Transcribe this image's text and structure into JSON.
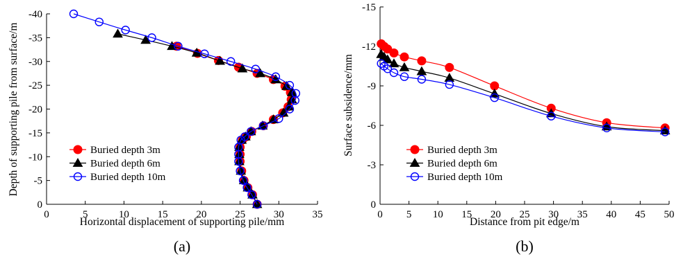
{
  "chart_data": [
    {
      "type": "line",
      "panel_label": "(a)",
      "xlabel": "Horizontal displacement of supporting pile/mm",
      "ylabel": "Depth of supporting pile from surface/m",
      "xlim": [
        0,
        35
      ],
      "ylim": [
        0,
        -40
      ],
      "xticks": [
        "0",
        "5",
        "10",
        "15",
        "20",
        "25",
        "30",
        "35"
      ],
      "yticks": [
        "0",
        "-5",
        "-10",
        "-15",
        "-20",
        "-25",
        "-30",
        "-35",
        "-40"
      ],
      "legend_position": "bottom-left",
      "series": [
        {
          "name": "Buried depth 3m",
          "color": "#ff0000",
          "marker": "filled-circle",
          "points": [
            [
              27.2,
              0
            ],
            [
              26.6,
              -2
            ],
            [
              26.0,
              -3.5
            ],
            [
              25.5,
              -5
            ],
            [
              25.2,
              -7
            ],
            [
              25.0,
              -9
            ],
            [
              25.0,
              -10.5
            ],
            [
              25.0,
              -12
            ],
            [
              25.3,
              -13.5
            ],
            [
              25.8,
              -14.2
            ],
            [
              26.5,
              -15.3
            ],
            [
              28.0,
              -16.5
            ],
            [
              29.3,
              -17.8
            ],
            [
              30.5,
              -19.2
            ],
            [
              31.2,
              -20.5
            ],
            [
              31.6,
              -22
            ],
            [
              31.5,
              -23.5
            ],
            [
              30.8,
              -24.8
            ],
            [
              29.3,
              -26.2
            ],
            [
              27.2,
              -27.5
            ],
            [
              24.8,
              -28.8
            ],
            [
              22.2,
              -30.2
            ],
            [
              19.5,
              -31.7
            ],
            [
              16.8,
              -33.2
            ]
          ]
        },
        {
          "name": "Buried depth 6m",
          "color": "#000000",
          "marker": "filled-triangle",
          "points": [
            [
              27.2,
              0
            ],
            [
              26.6,
              -2
            ],
            [
              26.0,
              -3.5
            ],
            [
              25.5,
              -5
            ],
            [
              25.1,
              -7
            ],
            [
              24.9,
              -9
            ],
            [
              24.9,
              -10.5
            ],
            [
              24.9,
              -12
            ],
            [
              25.2,
              -13.5
            ],
            [
              25.7,
              -14.2
            ],
            [
              26.4,
              -15.3
            ],
            [
              27.9,
              -16.5
            ],
            [
              29.3,
              -17.8
            ],
            [
              30.6,
              -19.2
            ],
            [
              31.3,
              -20.5
            ],
            [
              31.7,
              -22
            ],
            [
              31.7,
              -23.5
            ],
            [
              31.0,
              -24.8
            ],
            [
              29.6,
              -26.2
            ],
            [
              27.6,
              -27.5
            ],
            [
              25.3,
              -28.5
            ],
            [
              22.4,
              -30.1
            ],
            [
              19.4,
              -31.8
            ],
            [
              16.2,
              -33.2
            ],
            [
              12.8,
              -34.5
            ],
            [
              9.2,
              -35.8
            ]
          ]
        },
        {
          "name": "Buried depth 10m",
          "color": "#0000ff",
          "marker": "open-circle",
          "points": [
            [
              27.2,
              0
            ],
            [
              26.5,
              -2
            ],
            [
              25.9,
              -3.5
            ],
            [
              25.4,
              -5
            ],
            [
              25.0,
              -7
            ],
            [
              24.8,
              -9
            ],
            [
              24.8,
              -10.5
            ],
            [
              24.8,
              -12
            ],
            [
              25.1,
              -13.5
            ],
            [
              25.6,
              -14.2
            ],
            [
              26.4,
              -15.3
            ],
            [
              28.0,
              -16.5
            ],
            [
              30.0,
              -18.0
            ],
            [
              31.4,
              -20
            ],
            [
              32.1,
              -21.8
            ],
            [
              32.2,
              -23.3
            ],
            [
              31.4,
              -25
            ],
            [
              29.6,
              -26.8
            ],
            [
              27.0,
              -28.4
            ],
            [
              23.8,
              -30
            ],
            [
              20.4,
              -31.6
            ],
            [
              17.0,
              -33.2
            ],
            [
              13.6,
              -35.0
            ],
            [
              10.2,
              -36.6
            ],
            [
              6.8,
              -38.3
            ],
            [
              3.5,
              -40
            ]
          ]
        }
      ]
    },
    {
      "type": "line",
      "panel_label": "(b)",
      "xlabel": "Distance from pit edge/m",
      "ylabel": "Surface subsidence/mm",
      "xlim": [
        0,
        50
      ],
      "ylim": [
        0,
        -15
      ],
      "xticks": [
        "0",
        "5",
        "10",
        "15",
        "20",
        "25",
        "30",
        "35",
        "40",
        "45",
        "50"
      ],
      "yticks": [
        "0",
        "-3",
        "-6",
        "-9",
        "-12",
        "-15"
      ],
      "legend_position": "bottom-left",
      "series": [
        {
          "name": "Buried depth 3m",
          "color": "#ff0000",
          "marker": "filled-circle",
          "points": [
            [
              0.2,
              -12.2
            ],
            [
              0.7,
              -12.0
            ],
            [
              1.3,
              -11.8
            ],
            [
              2.4,
              -11.5
            ],
            [
              4.2,
              -11.2
            ],
            [
              7.2,
              -10.9
            ],
            [
              12.0,
              -10.4
            ],
            [
              19.8,
              -9.0
            ],
            [
              29.6,
              -7.3
            ],
            [
              39.2,
              -6.2
            ],
            [
              49.3,
              -5.8
            ]
          ]
        },
        {
          "name": "Buried depth 6m",
          "color": "#000000",
          "marker": "filled-triangle",
          "points": [
            [
              0.2,
              -11.4
            ],
            [
              0.7,
              -11.2
            ],
            [
              1.3,
              -11.0
            ],
            [
              2.4,
              -10.7
            ],
            [
              4.2,
              -10.4
            ],
            [
              7.2,
              -10.1
            ],
            [
              12.0,
              -9.6
            ],
            [
              19.8,
              -8.4
            ],
            [
              29.6,
              -6.9
            ],
            [
              39.2,
              -5.9
            ],
            [
              49.3,
              -5.6
            ]
          ]
        },
        {
          "name": "Buried depth 10m",
          "color": "#0000ff",
          "marker": "open-circle",
          "points": [
            [
              0.2,
              -10.7
            ],
            [
              0.7,
              -10.5
            ],
            [
              1.3,
              -10.3
            ],
            [
              2.4,
              -10.0
            ],
            [
              4.2,
              -9.7
            ],
            [
              7.2,
              -9.5
            ],
            [
              12.0,
              -9.1
            ],
            [
              19.8,
              -8.1
            ],
            [
              29.6,
              -6.7
            ],
            [
              39.2,
              -5.8
            ],
            [
              49.3,
              -5.5
            ]
          ]
        }
      ]
    }
  ]
}
